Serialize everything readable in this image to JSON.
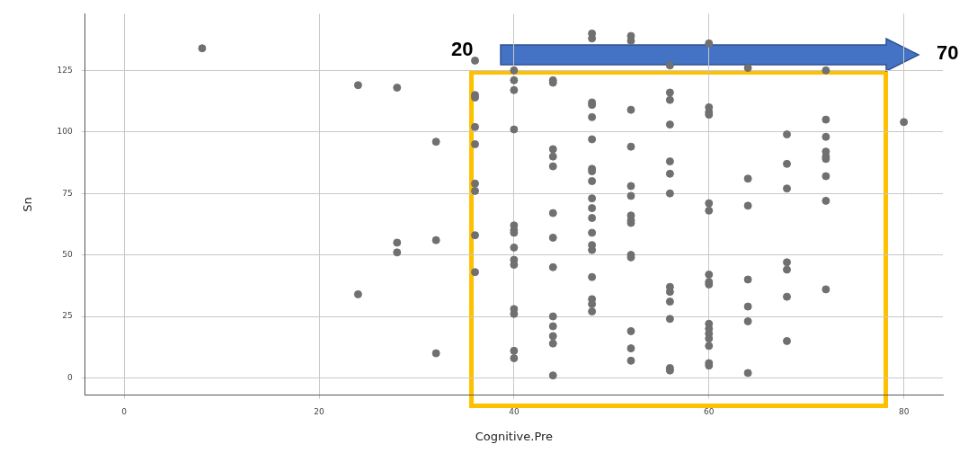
{
  "chart_data": {
    "type": "scatter",
    "xlabel": "Cognitive.Pre",
    "ylabel": "Sn",
    "x": [
      8,
      24,
      24,
      28,
      28,
      28,
      32,
      32,
      32,
      36,
      36,
      36,
      36,
      36,
      36,
      36,
      36,
      36,
      40,
      40,
      40,
      40,
      40,
      40,
      40,
      40,
      40,
      40,
      40,
      40,
      40,
      40,
      44,
      44,
      44,
      44,
      44,
      44,
      44,
      44,
      44,
      44,
      44,
      44,
      44,
      48,
      48,
      48,
      48,
      48,
      48,
      48,
      48,
      48,
      48,
      48,
      48,
      48,
      48,
      48,
      48,
      48,
      48,
      48,
      52,
      52,
      52,
      52,
      52,
      52,
      52,
      52,
      52,
      52,
      52,
      52,
      52,
      52,
      56,
      56,
      56,
      56,
      56,
      56,
      56,
      56,
      56,
      56,
      56,
      56,
      56,
      60,
      60,
      60,
      60,
      60,
      60,
      60,
      60,
      60,
      60,
      60,
      60,
      60,
      60,
      60,
      60,
      64,
      64,
      64,
      64,
      64,
      64,
      64,
      68,
      68,
      68,
      68,
      68,
      68,
      68,
      72,
      72,
      72,
      72,
      72,
      72,
      72,
      72,
      72,
      80
    ],
    "values": [
      134,
      119,
      34,
      118,
      55,
      51,
      96,
      56,
      10,
      129,
      115,
      114,
      102,
      95,
      79,
      76,
      58,
      43,
      125,
      121,
      117,
      101,
      62,
      60,
      59,
      53,
      48,
      46,
      28,
      26,
      11,
      8,
      121,
      120,
      93,
      90,
      86,
      67,
      57,
      45,
      25,
      21,
      17,
      14,
      1,
      140,
      138,
      112,
      111,
      106,
      97,
      85,
      84,
      80,
      73,
      69,
      65,
      59,
      54,
      52,
      41,
      32,
      30,
      27,
      139,
      137,
      109,
      94,
      78,
      74,
      66,
      64,
      63,
      50,
      49,
      19,
      12,
      7,
      127,
      116,
      113,
      103,
      88,
      83,
      75,
      37,
      35,
      31,
      24,
      4,
      3,
      136,
      110,
      108,
      107,
      71,
      68,
      42,
      39,
      38,
      22,
      20,
      18,
      16,
      13,
      6,
      5,
      126,
      81,
      70,
      40,
      29,
      23,
      2,
      99,
      87,
      77,
      47,
      44,
      33,
      15,
      125,
      105,
      98,
      92,
      90,
      89,
      82,
      72,
      36,
      104
    ],
    "color": "#707070",
    "marker": "circle",
    "xlim": [
      -4,
      84
    ],
    "xticks": [
      0,
      20,
      40,
      60,
      80
    ],
    "ylim": [
      -7,
      148
    ],
    "yticks": [
      0,
      25,
      50,
      75,
      100,
      125
    ],
    "grid": true,
    "legend": false,
    "annotations": [
      "20",
      "70"
    ]
  }
}
